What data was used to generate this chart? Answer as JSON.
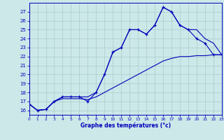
{
  "hours": [
    0,
    1,
    2,
    3,
    4,
    5,
    6,
    7,
    8,
    9,
    10,
    11,
    12,
    13,
    14,
    15,
    16,
    17,
    18,
    19,
    20,
    21,
    22,
    23
  ],
  "temp_main": [
    16.7,
    16.0,
    16.1,
    17.0,
    17.5,
    17.5,
    17.5,
    17.0,
    18.0,
    20.0,
    22.5,
    23.0,
    25.0,
    25.0,
    24.5,
    25.5,
    27.5,
    27.0,
    25.5,
    25.0,
    24.0,
    23.5,
    22.2,
    22.2
  ],
  "temp_min": [
    16.7,
    16.0,
    16.1,
    17.0,
    17.3,
    17.3,
    17.3,
    17.2,
    17.5,
    18.0,
    18.5,
    19.0,
    19.5,
    20.0,
    20.5,
    21.0,
    21.5,
    21.8,
    22.0,
    22.0,
    22.1,
    22.1,
    22.2,
    22.2
  ],
  "temp_max": [
    16.7,
    16.0,
    16.1,
    17.0,
    17.5,
    17.5,
    17.5,
    17.5,
    18.0,
    20.0,
    22.5,
    23.0,
    25.0,
    25.0,
    24.5,
    25.5,
    27.5,
    27.0,
    25.5,
    25.0,
    25.0,
    24.0,
    23.5,
    22.2
  ],
  "line_color": "#0000bb",
  "bg_color": "#cce8e8",
  "grid_color": "#aacccc",
  "xlabel": "Graphe des températures (°c)",
  "ylim": [
    15.5,
    28.0
  ],
  "xlim": [
    0,
    23
  ],
  "yticks": [
    16,
    17,
    18,
    19,
    20,
    21,
    22,
    23,
    24,
    25,
    26,
    27
  ],
  "xticks": [
    0,
    1,
    2,
    3,
    4,
    5,
    6,
    7,
    8,
    9,
    10,
    11,
    12,
    13,
    14,
    15,
    16,
    17,
    18,
    19,
    20,
    21,
    22,
    23
  ],
  "xtick_labels": [
    "0",
    "1",
    "2",
    "3",
    "4",
    "5",
    "6",
    "7",
    "8",
    "9",
    "10",
    "11",
    "12",
    "13",
    "14",
    "15",
    "16",
    "17",
    "18",
    "19",
    "20",
    "21",
    "22",
    "23"
  ]
}
